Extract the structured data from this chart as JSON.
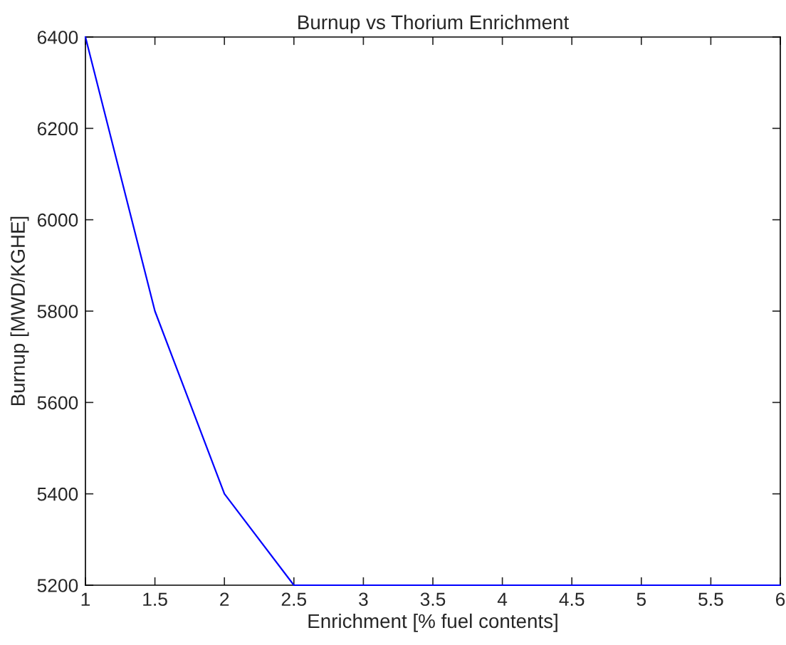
{
  "chart_data": {
    "type": "line",
    "title": "Burnup vs Thorium Enrichment",
    "xlabel": "Enrichment [% fuel contents]",
    "ylabel": "Burnup [MWD/KGHE]",
    "x": [
      1,
      1.5,
      2,
      2.5,
      3,
      3.5,
      4,
      4.5,
      5,
      5.5,
      6
    ],
    "series": [
      {
        "color": "#0000ff",
        "values": [
          6400,
          5800,
          5400,
          5200,
          5200,
          5200,
          5200,
          5200,
          5200,
          5200,
          5200
        ]
      }
    ],
    "xlim": [
      1,
      6
    ],
    "xticks": [
      1,
      1.5,
      2,
      2.5,
      3,
      3.5,
      4,
      4.5,
      5,
      5.5,
      6
    ],
    "ylim": [
      5200,
      6400
    ],
    "yticks": [
      5200,
      5400,
      5600,
      5800,
      6000,
      6200,
      6400
    ],
    "grid": false,
    "marker": "none",
    "line_style": "solid"
  }
}
